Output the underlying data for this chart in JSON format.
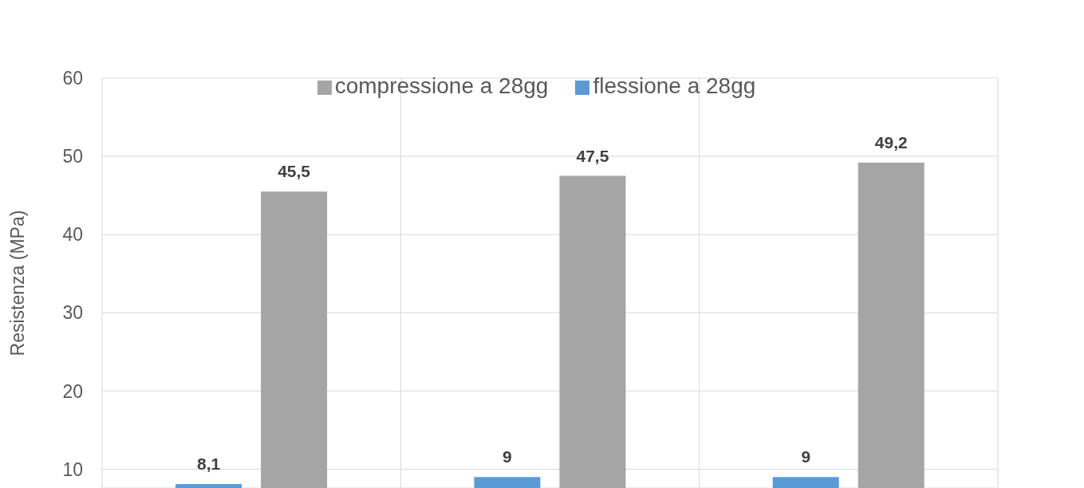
{
  "chart_data": {
    "type": "bar",
    "ylabel": "Resistenza (MPa)",
    "categories": [
      null,
      null,
      null
    ],
    "series": [
      {
        "name": "flessione a 28gg",
        "color": "#5b9bd5",
        "values": [
          8.1,
          9,
          9
        ],
        "value_labels": [
          "8,1",
          "9",
          "9"
        ]
      },
      {
        "name": "compressione a 28gg",
        "color": "#a5a5a5",
        "values": [
          45.5,
          47.5,
          49.2
        ],
        "value_labels": [
          "45,5",
          "47,5",
          "49,2"
        ]
      }
    ],
    "ylim": [
      7.6,
      60
    ],
    "yticks": [
      10,
      20,
      30,
      40,
      50,
      60
    ],
    "grid": true,
    "legend": "top"
  }
}
